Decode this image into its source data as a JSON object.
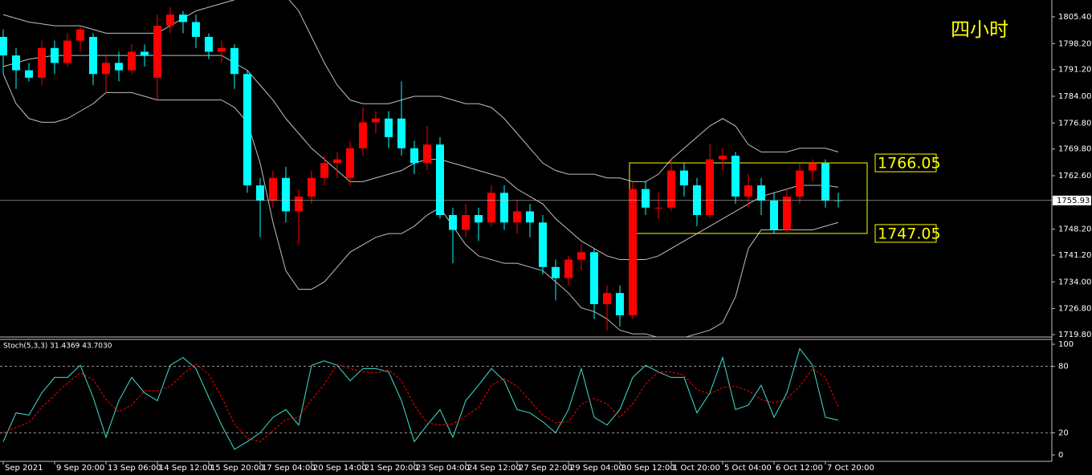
{
  "chart_data": [
    {
      "type": "candlestick",
      "title": "四小时",
      "title_color": "#ffff00",
      "up_color": "#ff0000",
      "down_color": "#00ffff",
      "open": [
        1800,
        1795,
        1791,
        1789,
        1797,
        1793,
        1799,
        1800,
        1790,
        1793,
        1791,
        1796,
        1789,
        1803,
        1806,
        1804,
        1800,
        1796,
        1797,
        1790,
        1760,
        1756,
        1762,
        1753,
        1757,
        1762,
        1766,
        1762,
        1770,
        1777,
        1778,
        1778,
        1770,
        1766,
        1771,
        1752,
        1748,
        1752,
        1750,
        1758,
        1750,
        1753,
        1750,
        1738,
        1735,
        1740,
        1742,
        1728,
        1731,
        1725,
        1759,
        1754,
        1754,
        1764,
        1760,
        1752,
        1767,
        1768,
        1757,
        1760,
        1756,
        1748,
        1757,
        1764,
        1766,
        1756
      ],
      "high": [
        1802,
        1797,
        1793,
        1799,
        1799,
        1801,
        1803,
        1801,
        1795,
        1796,
        1798,
        1798,
        1806,
        1808,
        1807,
        1806,
        1801,
        1799,
        1798,
        1791,
        1762,
        1764,
        1765,
        1759,
        1764,
        1768,
        1769,
        1772,
        1781,
        1780,
        1780,
        1788,
        1772,
        1776,
        1773,
        1754,
        1755,
        1754,
        1760,
        1760,
        1756,
        1755,
        1752,
        1740,
        1741,
        1744,
        1743,
        1733,
        1733,
        1761,
        1761,
        1758,
        1767,
        1766,
        1762,
        1771,
        1770,
        1769,
        1763,
        1762,
        1758,
        1759,
        1766,
        1767,
        1767,
        1758
      ],
      "low": [
        1790,
        1786,
        1788,
        1787,
        1790,
        1792,
        1796,
        1787,
        1785,
        1788,
        1790,
        1792,
        1783,
        1801,
        1801,
        1797,
        1794,
        1793,
        1786,
        1758,
        1746,
        1754,
        1750,
        1744,
        1755,
        1760,
        1762,
        1760,
        1768,
        1774,
        1770,
        1768,
        1763,
        1764,
        1751,
        1739,
        1746,
        1745,
        1749,
        1748,
        1747,
        1746,
        1736,
        1729,
        1733,
        1737,
        1724,
        1721,
        1722,
        1724,
        1752,
        1751,
        1753,
        1757,
        1749,
        1751,
        1764,
        1755,
        1754,
        1752,
        1747,
        1747,
        1755,
        1761,
        1754,
        1754
      ],
      "close": [
        1795,
        1791,
        1789,
        1797,
        1793,
        1799,
        1802,
        1790,
        1793,
        1791,
        1796,
        1795,
        1803,
        1806,
        1804,
        1800,
        1796,
        1797,
        1790,
        1760,
        1756,
        1762,
        1753,
        1757,
        1762,
        1766,
        1767,
        1770,
        1777,
        1778,
        1773,
        1770,
        1766,
        1771,
        1752,
        1748,
        1752,
        1750,
        1758,
        1750,
        1753,
        1750,
        1738,
        1735,
        1740,
        1742,
        1728,
        1731,
        1725,
        1759,
        1754,
        1754,
        1764,
        1760,
        1752,
        1767,
        1768,
        1757,
        1760,
        1756,
        1748,
        1757,
        1764,
        1766,
        1756,
        1755.93
      ],
      "series": [
        {
          "color": "#c0c0c0",
          "values": [
            1806,
            1805,
            1804,
            1803.5,
            1803,
            1803,
            1803,
            1802,
            1801,
            1801,
            1801,
            1801,
            1801,
            1803,
            1805,
            1807,
            1808,
            1809,
            1810,
            1811,
            1812,
            1812,
            1811,
            1807,
            1800,
            1793,
            1787,
            1783,
            1782,
            1782,
            1782,
            1783,
            1784,
            1784,
            1784,
            1783,
            1782,
            1782,
            1781,
            1778,
            1774,
            1770,
            1766,
            1764,
            1763,
            1763,
            1763,
            1762,
            1762,
            1761,
            1761,
            1763,
            1767,
            1770,
            1773,
            1776,
            1778,
            1776,
            1771,
            1769,
            1769,
            1769,
            1770,
            1770,
            1770,
            1769
          ]
        },
        {
          "color": "#c0c0c0",
          "values": [
            1792,
            1793,
            1794,
            1794.5,
            1795,
            1795,
            1795,
            1795,
            1795,
            1795,
            1795,
            1795,
            1795,
            1795,
            1795,
            1795,
            1795,
            1795,
            1793,
            1791,
            1787,
            1783,
            1778,
            1774,
            1770,
            1767,
            1764,
            1761,
            1761,
            1762,
            1763,
            1764,
            1766,
            1767,
            1767,
            1766,
            1765,
            1764,
            1763,
            1762,
            1759,
            1757,
            1755,
            1751,
            1748,
            1745,
            1743,
            1741,
            1740,
            1740,
            1740,
            1741,
            1743,
            1745,
            1747,
            1749,
            1751,
            1753,
            1755,
            1757,
            1758,
            1759,
            1760,
            1760,
            1760,
            1759.5
          ]
        },
        {
          "color": "#c0c0c0",
          "values": [
            1790,
            1782,
            1778,
            1777,
            1777,
            1778,
            1780,
            1782,
            1785,
            1785,
            1785,
            1784,
            1783,
            1783,
            1783,
            1783,
            1783,
            1783,
            1781,
            1777,
            1766,
            1750,
            1737,
            1732,
            1732,
            1734,
            1738,
            1742,
            1744,
            1746,
            1747,
            1747,
            1749,
            1752,
            1754,
            1749,
            1744,
            1741,
            1740,
            1739,
            1739,
            1738,
            1737,
            1734,
            1731,
            1727,
            1726,
            1724,
            1721,
            1720,
            1720,
            1719,
            1719,
            1719,
            1720,
            1721,
            1723,
            1730,
            1743,
            1748,
            1748,
            1748,
            1748,
            1748,
            1749,
            1750
          ]
        }
      ],
      "range_box": {
        "top": 1766.05,
        "bottom": 1747.05,
        "color": "#ffff00"
      },
      "ylim": [
        1719.15,
        1809.94
      ],
      "yticks": [
        {
          "value": 1805.4,
          "label": "1805.40"
        },
        {
          "value": 1798.2,
          "label": "1798.20"
        },
        {
          "value": 1791.2,
          "label": "1791.20"
        },
        {
          "value": 1784,
          "label": "1784.00"
        },
        {
          "value": 1776.8,
          "label": "1776.80"
        },
        {
          "value": 1769.8,
          "label": "1769.80"
        },
        {
          "value": 1762.6,
          "label": "1762.60"
        },
        {
          "value": 1748.2,
          "label": "1748.20"
        },
        {
          "value": 1741.2,
          "label": "1741.20"
        },
        {
          "value": 1734,
          "label": "1734.00"
        },
        {
          "value": 1726.8,
          "label": "1726.80"
        },
        {
          "value": 1719.8,
          "label": "1719.80"
        }
      ]
    },
    {
      "type": "line",
      "label": "Stoch(5,3,3) 31.4369 43.7030",
      "series": [
        {
          "color": "#40e0d0",
          "values": [
            12,
            38,
            36,
            56,
            70,
            70,
            81,
            52,
            16,
            49,
            70,
            56,
            49,
            81,
            88,
            78,
            52,
            27,
            5,
            12,
            20,
            34,
            41,
            27,
            81,
            85,
            81,
            67,
            78,
            78,
            75,
            49,
            12,
            27,
            41,
            16,
            49,
            63,
            78,
            67,
            41,
            38,
            30,
            20,
            41,
            78,
            34,
            27,
            41,
            70,
            81,
            75,
            70,
            70,
            38,
            56,
            88,
            41,
            45,
            63,
            34,
            56,
            96,
            81,
            34,
            31.4369
          ]
        },
        {
          "color": "#ff0000",
          "dashed": true,
          "values": [
            20,
            25,
            29,
            43,
            54,
            65,
            74,
            68,
            50,
            39,
            45,
            58,
            58,
            62,
            73,
            82,
            73,
            52,
            28,
            15,
            12,
            22,
            32,
            34,
            50,
            64,
            82,
            78,
            75,
            74,
            77,
            67,
            45,
            29,
            27,
            28,
            35,
            43,
            63,
            69,
            62,
            49,
            36,
            29,
            30,
            46,
            51,
            46,
            34,
            46,
            64,
            75,
            75,
            72,
            59,
            55,
            61,
            62,
            58,
            50,
            47,
            51,
            62,
            78,
            70,
            43.703
          ]
        }
      ],
      "levels": [
        80,
        20
      ],
      "ylim": [
        -5.8,
        105.1
      ],
      "yticks": [
        100,
        80,
        20,
        0
      ],
      "xticks": [
        {
          "value": 0,
          "label": "Sep 2021"
        },
        {
          "value": 4,
          "label": "9 Sep 20:00"
        },
        {
          "value": 8,
          "label": "13 Sep 06:00"
        },
        {
          "value": 12,
          "label": "14 Sep 12:00"
        },
        {
          "value": 16,
          "label": "15 Sep 20:00"
        },
        {
          "value": 20,
          "label": "17 Sep 04:00"
        },
        {
          "value": 24,
          "label": "20 Sep 14:00"
        },
        {
          "value": 28,
          "label": "21 Sep 20:00"
        },
        {
          "value": 32,
          "label": "23 Sep 04:00"
        },
        {
          "value": 36,
          "label": "24 Sep 12:00"
        },
        {
          "value": 40,
          "label": "27 Sep 22:00"
        },
        {
          "value": 44,
          "label": "29 Sep 04:00"
        },
        {
          "value": 48,
          "label": "30 Sep 12:00"
        },
        {
          "value": 52,
          "label": "1 Oct 20:00"
        },
        {
          "value": 56,
          "label": "5 Oct 04:00"
        },
        {
          "value": 60,
          "label": "6 Oct 12:00"
        },
        {
          "value": 64,
          "label": "7 Oct 20:00"
        }
      ]
    }
  ]
}
